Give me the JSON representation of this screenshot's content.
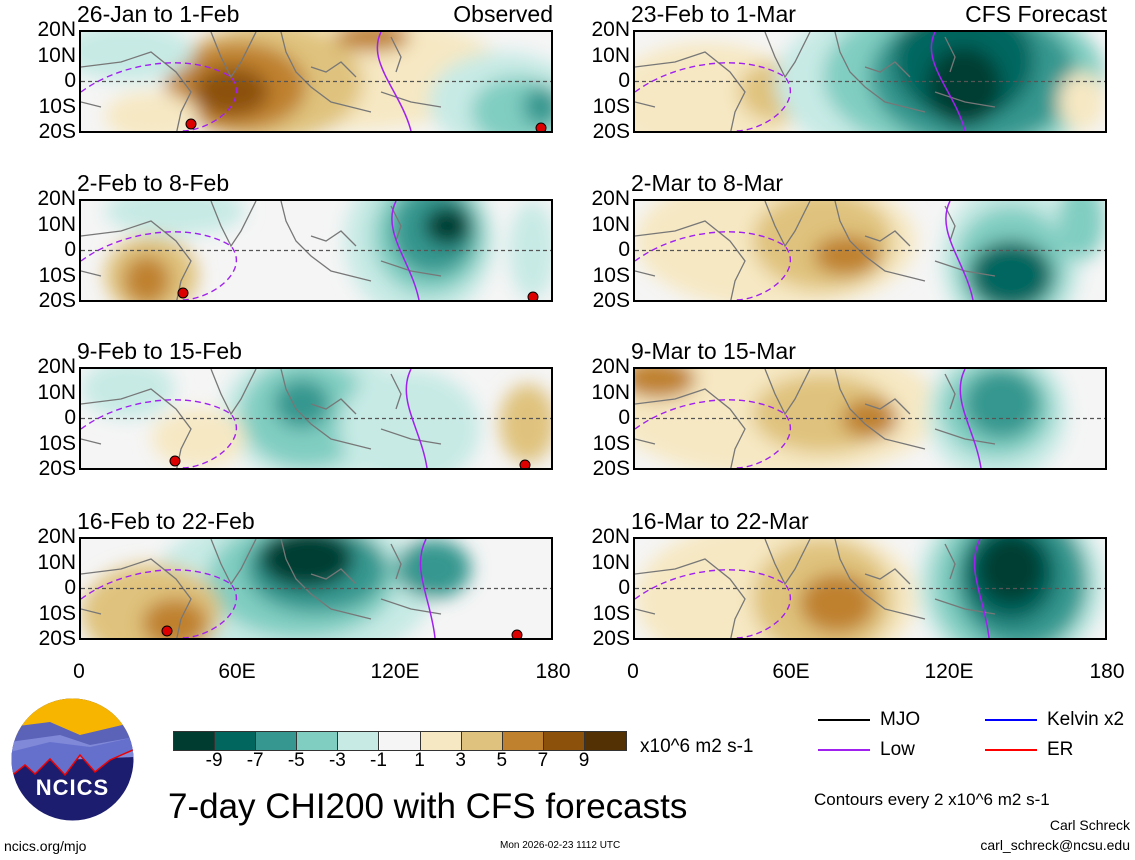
{
  "panels_observed": [
    {
      "title": "26-Jan to 1-Feb",
      "right_label": "Observed"
    },
    {
      "title": "2-Feb to 8-Feb",
      "right_label": ""
    },
    {
      "title": "9-Feb to 15-Feb",
      "right_label": ""
    },
    {
      "title": "16-Feb to 22-Feb",
      "right_label": ""
    }
  ],
  "panels_forecast": [
    {
      "title": "23-Feb to 1-Mar",
      "right_label": "CFS Forecast"
    },
    {
      "title": "2-Mar to 8-Mar",
      "right_label": ""
    },
    {
      "title": "9-Mar to 15-Mar",
      "right_label": ""
    },
    {
      "title": "16-Mar to 22-Mar",
      "right_label": ""
    }
  ],
  "lat_labels": [
    "20N",
    "10N",
    "0",
    "10S",
    "20S"
  ],
  "lon_labels": [
    "0",
    "60E",
    "120E",
    "180"
  ],
  "colorbar": {
    "ticks": [
      "-9",
      "-7",
      "-5",
      "-3",
      "-1",
      "1",
      "3",
      "5",
      "7",
      "9"
    ],
    "colors": [
      "#003c30",
      "#01665e",
      "#35978f",
      "#80cdc1",
      "#c7eae5",
      "#f5f5f5",
      "#f6e8c3",
      "#dfc27d",
      "#bf812d",
      "#8c510a",
      "#543005"
    ],
    "units": "x10^6 m2 s-1"
  },
  "legend": {
    "items": [
      {
        "label": "MJO",
        "color": "#000000"
      },
      {
        "label": "Kelvin x2",
        "color": "#0000ff"
      },
      {
        "label": "Low",
        "color": "#a020f0"
      },
      {
        "label": "ER",
        "color": "#ff0000"
      }
    ],
    "contours_note": "Contours every 2 x10^6 m2 s-1"
  },
  "logo": {
    "text": "NCICS"
  },
  "footer": {
    "title": "7-day CHI200 with CFS forecasts",
    "url": "ncics.org/mjo",
    "timestamp": "Mon 2026-02-23 1112 UTC",
    "author": "Carl Schreck",
    "email": "carl_schreck@ncsu.edu"
  }
}
